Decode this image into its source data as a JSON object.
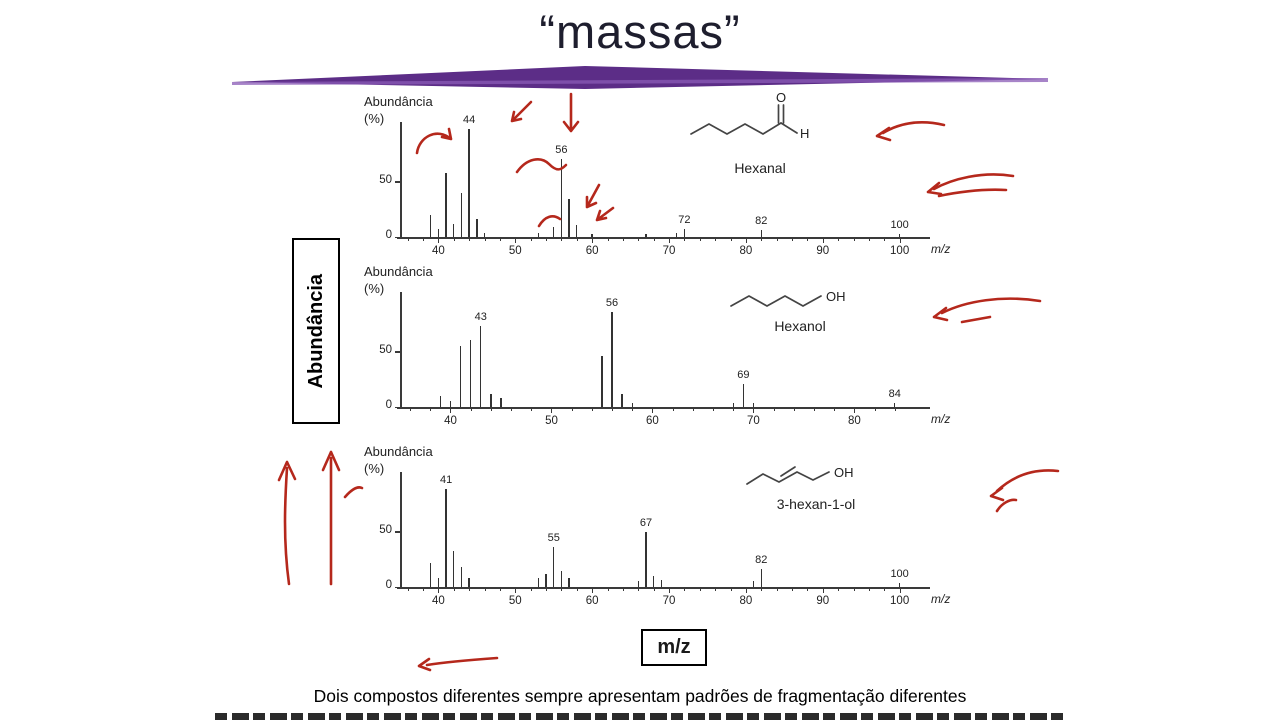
{
  "slide": {
    "title": "“massas”",
    "caption": "Dois compostos diferentes sempre apresentam padrões de fragmentação diferentes",
    "y_axis_box_label": "Abundância",
    "x_axis_box_label": "m/z",
    "panel_ylabel_line1": "Abundância",
    "panel_ylabel_line2": "(%)",
    "colors": {
      "divider_purple": "#5c2d87",
      "divider_purple_light": "#8a5bb5",
      "annotation_red": "#b5281c",
      "axis_ink": "#3a3a3a"
    }
  },
  "chart_data": [
    {
      "type": "bar",
      "title": "Hexanal",
      "ylabel": "Abundância (%)",
      "xlabel": "m/z",
      "xlim": [
        35,
        102
      ],
      "ylim": [
        0,
        100
      ],
      "yticks": [
        0,
        50
      ],
      "xticks": [
        40,
        50,
        60,
        70,
        80,
        90,
        100
      ],
      "peaks": [
        {
          "mz": 39,
          "rel": 20
        },
        {
          "mz": 40,
          "rel": 7
        },
        {
          "mz": 41,
          "rel": 58
        },
        {
          "mz": 42,
          "rel": 12
        },
        {
          "mz": 43,
          "rel": 40
        },
        {
          "mz": 44,
          "rel": 97
        },
        {
          "mz": 45,
          "rel": 16
        },
        {
          "mz": 46,
          "rel": 4
        },
        {
          "mz": 53,
          "rel": 4
        },
        {
          "mz": 55,
          "rel": 9
        },
        {
          "mz": 56,
          "rel": 70
        },
        {
          "mz": 57,
          "rel": 34
        },
        {
          "mz": 58,
          "rel": 11
        },
        {
          "mz": 60,
          "rel": 3
        },
        {
          "mz": 67,
          "rel": 3
        },
        {
          "mz": 71,
          "rel": 4
        },
        {
          "mz": 72,
          "rel": 7
        },
        {
          "mz": 82,
          "rel": 6
        },
        {
          "mz": 100,
          "rel": 3
        }
      ],
      "labeled_peaks": [
        44,
        56,
        72,
        82,
        100
      ],
      "atom_labels": [
        "O",
        "H"
      ]
    },
    {
      "type": "bar",
      "title": "Hexanol",
      "ylabel": "Abundância (%)",
      "xlabel": "m/z",
      "xlim": [
        35,
        86
      ],
      "ylim": [
        0,
        100
      ],
      "yticks": [
        0,
        50
      ],
      "xticks": [
        40,
        50,
        60,
        70,
        80
      ],
      "peaks": [
        {
          "mz": 39,
          "rel": 10
        },
        {
          "mz": 40,
          "rel": 5
        },
        {
          "mz": 41,
          "rel": 55
        },
        {
          "mz": 42,
          "rel": 60
        },
        {
          "mz": 43,
          "rel": 73
        },
        {
          "mz": 44,
          "rel": 12
        },
        {
          "mz": 45,
          "rel": 8
        },
        {
          "mz": 55,
          "rel": 46
        },
        {
          "mz": 56,
          "rel": 86
        },
        {
          "mz": 57,
          "rel": 12
        },
        {
          "mz": 58,
          "rel": 4
        },
        {
          "mz": 68,
          "rel": 4
        },
        {
          "mz": 69,
          "rel": 21
        },
        {
          "mz": 70,
          "rel": 4
        },
        {
          "mz": 84,
          "rel": 4
        }
      ],
      "labeled_peaks": [
        43,
        56,
        69,
        84
      ],
      "atom_labels": [
        "OH"
      ]
    },
    {
      "type": "bar",
      "title": "3-hexan-1-ol",
      "ylabel": "Abundância (%)",
      "xlabel": "m/z",
      "xlim": [
        35,
        102
      ],
      "ylim": [
        0,
        100
      ],
      "yticks": [
        0,
        50
      ],
      "xticks": [
        40,
        50,
        60,
        70,
        80,
        90,
        100
      ],
      "peaks": [
        {
          "mz": 39,
          "rel": 22
        },
        {
          "mz": 40,
          "rel": 8
        },
        {
          "mz": 41,
          "rel": 88
        },
        {
          "mz": 42,
          "rel": 32
        },
        {
          "mz": 43,
          "rel": 18
        },
        {
          "mz": 44,
          "rel": 8
        },
        {
          "mz": 53,
          "rel": 8
        },
        {
          "mz": 54,
          "rel": 12
        },
        {
          "mz": 55,
          "rel": 36
        },
        {
          "mz": 56,
          "rel": 14
        },
        {
          "mz": 57,
          "rel": 8
        },
        {
          "mz": 66,
          "rel": 5
        },
        {
          "mz": 67,
          "rel": 50
        },
        {
          "mz": 68,
          "rel": 10
        },
        {
          "mz": 69,
          "rel": 6
        },
        {
          "mz": 81,
          "rel": 5
        },
        {
          "mz": 82,
          "rel": 16
        },
        {
          "mz": 100,
          "rel": 4
        }
      ],
      "labeled_peaks": [
        41,
        55,
        67,
        82,
        100
      ],
      "atom_labels": [
        "OH"
      ]
    }
  ]
}
